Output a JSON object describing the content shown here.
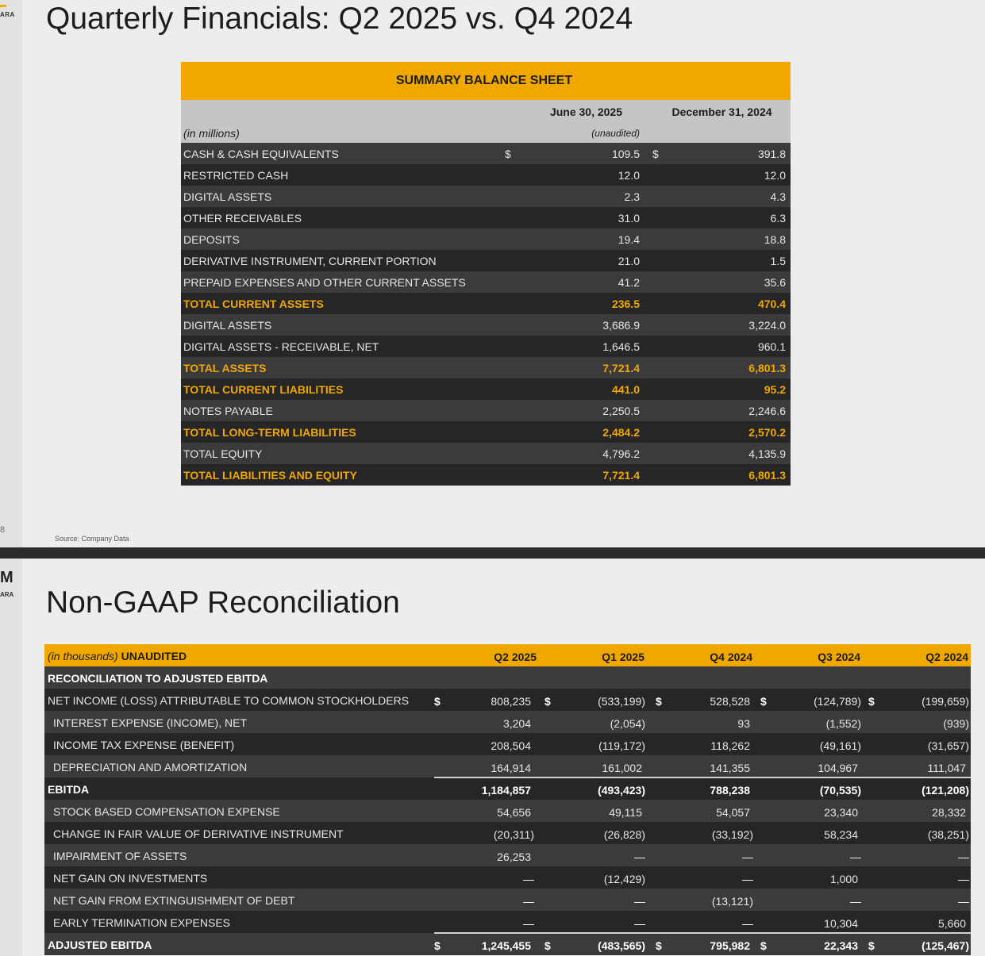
{
  "slide1": {
    "logo_text": "ARA",
    "title": "Quarterly Financials: Q2 2025 vs. Q4 2024",
    "page_number": "8",
    "source": "Source: Company Data",
    "balance_sheet": {
      "header": "SUMMARY BALANCE SHEET",
      "col1": "June 30, 2025",
      "col2": "December 31, 2024",
      "unit": "(in millions)",
      "unaudited": "(unaudited)",
      "currency": "$",
      "rows": [
        {
          "label": "CASH & CASH EQUIVALENTS",
          "v1": "109.5",
          "v2": "391.8"
        },
        {
          "label": "RESTRICTED CASH",
          "v1": "12.0",
          "v2": "12.0"
        },
        {
          "label": "DIGITAL ASSETS",
          "v1": "2.3",
          "v2": "4.3"
        },
        {
          "label": "OTHER RECEIVABLES",
          "v1": "31.0",
          "v2": "6.3"
        },
        {
          "label": "DEPOSITS",
          "v1": "19.4",
          "v2": "18.8"
        },
        {
          "label": "DERIVATIVE INSTRUMENT, CURRENT PORTION",
          "v1": "21.0",
          "v2": "1.5"
        },
        {
          "label": "PREPAID EXPENSES AND OTHER CURRENT ASSETS",
          "v1": "41.2",
          "v2": "35.6"
        },
        {
          "label": "TOTAL CURRENT ASSETS",
          "v1": "236.5",
          "v2": "470.4"
        },
        {
          "label": "DIGITAL ASSETS",
          "v1": "3,686.9",
          "v2": "3,224.0"
        },
        {
          "label": "DIGITAL ASSETS - RECEIVABLE, NET",
          "v1": "1,646.5",
          "v2": "960.1"
        },
        {
          "label": "TOTAL ASSETS",
          "v1": "7,721.4",
          "v2": "6,801.3"
        },
        {
          "label": "TOTAL CURRENT LIABILITIES",
          "v1": "441.0",
          "v2": "95.2"
        },
        {
          "label": "NOTES PAYABLE",
          "v1": "2,250.5",
          "v2": "2,246.6"
        },
        {
          "label": "TOTAL LONG-TERM LIABILITIES",
          "v1": "2,484.2",
          "v2": "2,570.2"
        },
        {
          "label": "TOTAL EQUITY",
          "v1": "4,796.2",
          "v2": "4,135.9"
        },
        {
          "label": "TOTAL LIABILITIES AND EQUITY",
          "v1": "7,721.4",
          "v2": "6,801.3"
        }
      ]
    }
  },
  "slide2": {
    "logo_mark": "M",
    "logo_text": "ARA",
    "title": "Non-GAAP Reconciliation",
    "table": {
      "unit": "(in thousands)",
      "unaudited": "UNAUDITED",
      "columns": [
        "Q2 2025",
        "Q1 2025",
        "Q4 2024",
        "Q3 2024",
        "Q2 2024"
      ],
      "section": "RECONCILIATION TO ADJUSTED EBITDA",
      "currency": "$",
      "rows": [
        {
          "label": "NET INCOME (LOSS) ATTRIBUTABLE TO COMMON STOCKHOLDERS",
          "values": [
            "808,235",
            "(533,199)",
            "528,528",
            "(124,789)",
            "(199,659)"
          ]
        },
        {
          "label": "INTEREST EXPENSE (INCOME), NET",
          "values": [
            "3,204",
            "(2,054)",
            "93",
            "(1,552)",
            "(939)"
          ]
        },
        {
          "label": "INCOME TAX EXPENSE (BENEFIT)",
          "values": [
            "208,504",
            "(119,172)",
            "118,262",
            "(49,161)",
            "(31,657)"
          ]
        },
        {
          "label": "DEPRECIATION AND AMORTIZATION",
          "values": [
            "164,914",
            "161,002",
            "141,355",
            "104,967",
            "111,047"
          ]
        },
        {
          "label": "EBITDA",
          "values": [
            "1,184,857",
            "(493,423)",
            "788,238",
            "(70,535)",
            "(121,208)"
          ]
        },
        {
          "label": "STOCK BASED COMPENSATION EXPENSE",
          "values": [
            "54,656",
            "49,115",
            "54,057",
            "23,340",
            "28,332"
          ]
        },
        {
          "label": "CHANGE IN FAIR VALUE OF DERIVATIVE INSTRUMENT",
          "values": [
            "(20,311)",
            "(26,828)",
            "(33,192)",
            "58,234",
            "(38,251)"
          ]
        },
        {
          "label": "IMPAIRMENT OF ASSETS",
          "values": [
            "26,253",
            "—",
            "—",
            "—",
            "—"
          ]
        },
        {
          "label": "NET GAIN ON INVESTMENTS",
          "values": [
            "—",
            "(12,429)",
            "—",
            "1,000",
            "—"
          ]
        },
        {
          "label": "NET GAIN FROM EXTINGUISHMENT OF DEBT",
          "values": [
            "—",
            "—",
            "(13,121)",
            "—",
            "—"
          ]
        },
        {
          "label": "EARLY TERMINATION EXPENSES",
          "values": [
            "—",
            "—",
            "—",
            "10,304",
            "5,660"
          ]
        },
        {
          "label": "ADJUSTED EBITDA",
          "values": [
            "1,245,455",
            "(483,565)",
            "795,982",
            "22,343",
            "(125,467)"
          ]
        }
      ]
    }
  }
}
